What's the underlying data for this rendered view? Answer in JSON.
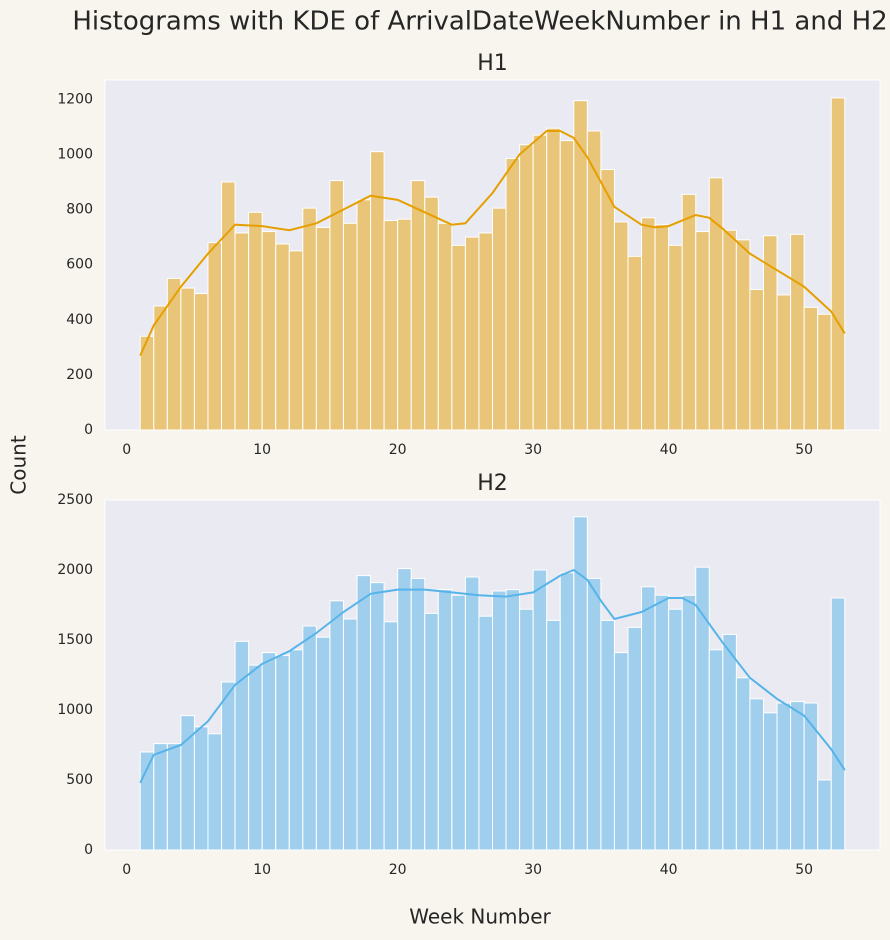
{
  "title": "Histograms with KDE of ArrivalDateWeekNumber in H1 and H2",
  "xlabel": "Week Number",
  "ylabel": "Count",
  "chart_data": [
    {
      "type": "histogram",
      "title": "H1",
      "color": "#e69f00",
      "bins": [
        1,
        2,
        3,
        4,
        5,
        6,
        7,
        8,
        9,
        10,
        11,
        12,
        13,
        14,
        15,
        16,
        17,
        18,
        19,
        20,
        21,
        22,
        23,
        24,
        25,
        26,
        27,
        28,
        29,
        30,
        31,
        32,
        33,
        34,
        35,
        36,
        37,
        38,
        39,
        40,
        41,
        42,
        43,
        44,
        45,
        46,
        47,
        48,
        49,
        50,
        51,
        52,
        53
      ],
      "values": [
        340,
        450,
        550,
        515,
        495,
        680,
        900,
        715,
        790,
        720,
        675,
        650,
        805,
        735,
        905,
        750,
        835,
        1010,
        760,
        765,
        905,
        845,
        750,
        670,
        700,
        715,
        805,
        985,
        1035,
        1070,
        1095,
        1050,
        1195,
        1085,
        945,
        755,
        630,
        770,
        745,
        670,
        855,
        720,
        915,
        725,
        690,
        510,
        705,
        490,
        710,
        445,
        420,
        1205
      ],
      "kde": {
        "x": [
          1,
          2,
          4,
          6,
          8,
          10,
          12,
          14,
          16,
          18,
          20,
          22,
          24,
          25,
          27,
          29,
          31,
          32,
          33,
          34,
          35,
          36,
          38,
          39,
          40,
          42,
          43,
          44,
          46,
          48,
          50,
          52,
          53
        ],
        "values": [
          270,
          380,
          520,
          640,
          745,
          740,
          725,
          750,
          800,
          850,
          835,
          790,
          745,
          750,
          860,
          1000,
          1085,
          1085,
          1060,
          990,
          900,
          810,
          745,
          735,
          740,
          780,
          770,
          730,
          640,
          580,
          520,
          430,
          350
        ]
      },
      "xlim": [
        -1.6,
        55.6
      ],
      "ylim": [
        0,
        1270
      ],
      "xticks": [
        0,
        10,
        20,
        30,
        40,
        50
      ],
      "yticks": [
        0,
        200,
        400,
        600,
        800,
        1000,
        1200
      ],
      "grid": false
    },
    {
      "type": "histogram",
      "title": "H2",
      "color": "#56b4e9",
      "bins": [
        1,
        2,
        3,
        4,
        5,
        6,
        7,
        8,
        9,
        10,
        11,
        12,
        13,
        14,
        15,
        16,
        17,
        18,
        19,
        20,
        21,
        22,
        23,
        24,
        25,
        26,
        27,
        28,
        29,
        30,
        31,
        32,
        33,
        34,
        35,
        36,
        37,
        38,
        39,
        40,
        41,
        42,
        43,
        44,
        45,
        46,
        47,
        48,
        49,
        50,
        51,
        52,
        53
      ],
      "values": [
        700,
        760,
        760,
        960,
        880,
        830,
        1200,
        1490,
        1320,
        1410,
        1390,
        1430,
        1600,
        1520,
        1780,
        1650,
        1960,
        1910,
        1630,
        2010,
        1940,
        1690,
        1860,
        1820,
        1950,
        1670,
        1850,
        1860,
        1720,
        2000,
        1640,
        1980,
        2380,
        1940,
        1640,
        1410,
        1590,
        1880,
        1820,
        1720,
        1820,
        2020,
        1430,
        1540,
        1230,
        1080,
        980,
        1050,
        1060,
        1050,
        500,
        1800
      ],
      "kde": {
        "x": [
          1,
          2,
          4,
          6,
          8,
          10,
          12,
          14,
          16,
          18,
          20,
          22,
          24,
          26,
          28,
          30,
          32,
          33,
          34,
          35,
          36,
          38,
          40,
          41,
          42,
          44,
          46,
          48,
          50,
          52,
          53
        ],
        "values": [
          480,
          680,
          750,
          920,
          1180,
          1330,
          1420,
          1550,
          1700,
          1830,
          1860,
          1860,
          1840,
          1820,
          1810,
          1840,
          1960,
          2000,
          1930,
          1780,
          1650,
          1700,
          1800,
          1800,
          1750,
          1480,
          1230,
          1080,
          960,
          720,
          570
        ]
      },
      "xlim": [
        -1.6,
        55.6
      ],
      "ylim": [
        0,
        2500
      ],
      "xticks": [
        0,
        10,
        20,
        30,
        40,
        50
      ],
      "yticks": [
        0,
        500,
        1000,
        1500,
        2000,
        2500
      ],
      "grid": false
    }
  ]
}
